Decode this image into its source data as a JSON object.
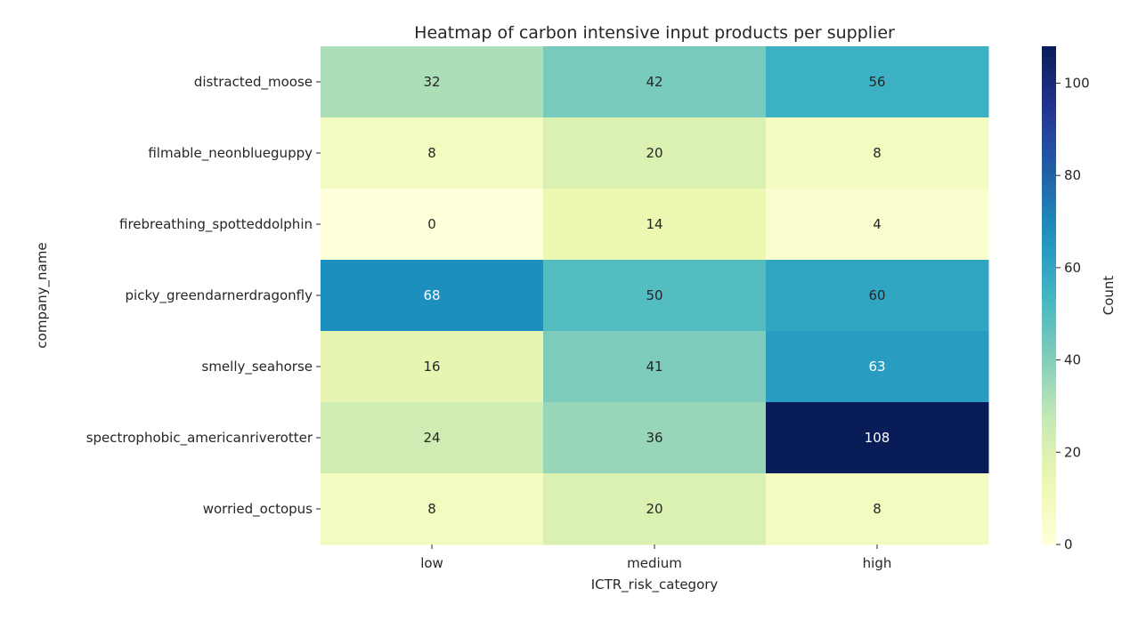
{
  "chart_data": {
    "type": "heatmap",
    "title": "Heatmap of carbon intensive input products per supplier",
    "xlabel": "ICTR_risk_category",
    "ylabel": "company_name",
    "x_categories": [
      "low",
      "medium",
      "high"
    ],
    "y_categories": [
      "distracted_moose",
      "filmable_neonblueguppy",
      "firebreathing_spotteddolphin",
      "picky_greendarnerdragonfly",
      "smelly_seahorse",
      "spectrophobic_americanriverotter",
      "worried_octopus"
    ],
    "values": [
      [
        32,
        42,
        56
      ],
      [
        8,
        20,
        8
      ],
      [
        0,
        14,
        4
      ],
      [
        68,
        50,
        60
      ],
      [
        16,
        41,
        63
      ],
      [
        24,
        36,
        108
      ],
      [
        8,
        20,
        8
      ]
    ],
    "colorbar": {
      "label": "Count",
      "range": [
        0,
        108
      ],
      "ticks": [
        0,
        20,
        40,
        60,
        80,
        100
      ],
      "colormap": "YlGnBu"
    }
  }
}
